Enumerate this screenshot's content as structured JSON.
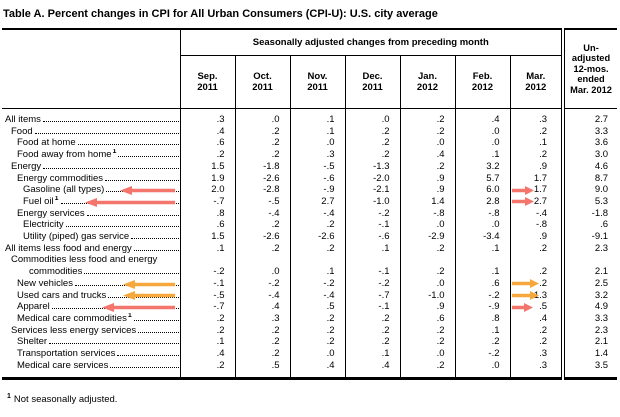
{
  "title": "Table A. Percent changes in CPI for All Urban Consumers (CPI-U): U.S. city average",
  "footnote": {
    "marker": "1",
    "text": "Not seasonally adjusted."
  },
  "colors": {
    "arrow_red": "#F4756B",
    "arrow_orange": "#F6A83C"
  },
  "table": {
    "group_header": "Seasonally adjusted changes from preceding month",
    "unadjusted_header_lines": [
      "Un-",
      "adjusted",
      "12-mos.",
      "ended",
      "Mar. 2012"
    ],
    "columns": [
      {
        "month": "Sep.",
        "year": "2011"
      },
      {
        "month": "Oct.",
        "year": "2011"
      },
      {
        "month": "Nov.",
        "year": "2011"
      },
      {
        "month": "Dec.",
        "year": "2011"
      },
      {
        "month": "Jan.",
        "year": "2012"
      },
      {
        "month": "Feb.",
        "year": "2012"
      },
      {
        "month": "Mar.",
        "year": "2012"
      }
    ],
    "rows": [
      {
        "label": "All items",
        "indent": 0,
        "values": [
          ".3",
          ".0",
          ".1",
          ".0",
          ".2",
          ".4",
          ".3"
        ],
        "unadjusted": "2.7"
      },
      {
        "label": "Food",
        "indent": 1,
        "values": [
          ".4",
          ".2",
          ".1",
          ".2",
          ".2",
          ".0",
          ".2"
        ],
        "unadjusted": "3.3"
      },
      {
        "label": "Food at home",
        "indent": 2,
        "values": [
          ".6",
          ".2",
          ".0",
          ".2",
          ".0",
          ".0",
          ".1"
        ],
        "unadjusted": "3.6"
      },
      {
        "label": "Food away from home",
        "sup": true,
        "indent": 2,
        "values": [
          ".2",
          ".2",
          ".3",
          ".2",
          ".4",
          ".1",
          ".2"
        ],
        "unadjusted": "3.0"
      },
      {
        "label": "Energy",
        "indent": 1,
        "values": [
          "1.5",
          "-1.8",
          "-.5",
          "-1.3",
          ".2",
          "3.2",
          ".9"
        ],
        "unadjusted": "4.6"
      },
      {
        "label": "Energy commodities",
        "indent": 2,
        "values": [
          "1.9",
          "-2.6",
          "-.6",
          "-2.0",
          ".9",
          "5.7",
          "1.7"
        ],
        "unadjusted": "8.7"
      },
      {
        "label": "Gasoline (all types)",
        "indent": 3,
        "values": [
          "2.0",
          "-2.8",
          "-.9",
          "-2.1",
          ".9",
          "6.0",
          "1.7"
        ],
        "unadjusted": "9.0",
        "label_arrow": "red",
        "label_arrow_w": 55,
        "mar_arrow": "red",
        "mar_arrow_w": 22
      },
      {
        "label": "Fuel oil",
        "sup": true,
        "indent": 3,
        "values": [
          "-.7",
          "-.5",
          "2.7",
          "-1.0",
          "1.4",
          "2.8",
          "2.7"
        ],
        "unadjusted": "5.3",
        "label_arrow": "red",
        "label_arrow_w": 90,
        "mar_arrow": "red",
        "mar_arrow_w": 22
      },
      {
        "label": "Energy services",
        "indent": 2,
        "values": [
          ".8",
          "-.4",
          "-.4",
          "-.2",
          "-.8",
          "-.8",
          "-.4"
        ],
        "unadjusted": "-1.8"
      },
      {
        "label": "Electricity",
        "indent": 3,
        "values": [
          ".6",
          ".2",
          ".2",
          "-.1",
          ".0",
          ".0",
          "-.8"
        ],
        "unadjusted": ".6"
      },
      {
        "label": "Utility (piped) gas service",
        "indent": 3,
        "values": [
          "1.5",
          "-2.6",
          "-2.6",
          "-.6",
          "-2.9",
          "-3.4",
          ".9"
        ],
        "unadjusted": "-9.1"
      },
      {
        "label": "All items less food and energy",
        "indent": 0,
        "values": [
          ".1",
          ".2",
          ".2",
          ".1",
          ".2",
          ".1",
          ".2"
        ],
        "unadjusted": "2.3"
      },
      {
        "label": "Commodities less food and energy",
        "label2": "commodities",
        "indent": 1,
        "indent2": 27,
        "values": [
          "-.2",
          ".0",
          ".1",
          "-.1",
          ".2",
          ".1",
          ".2"
        ],
        "unadjusted": "2.1"
      },
      {
        "label": "New vehicles",
        "indent": 2,
        "values": [
          "-.1",
          "-.2",
          "-.2",
          "-.2",
          ".0",
          ".6",
          ".2"
        ],
        "unadjusted": "2.5",
        "label_arrow": "orange",
        "label_arrow_w": 52,
        "mar_arrow": "orange",
        "mar_arrow_w": 27
      },
      {
        "label": "Used cars and trucks",
        "indent": 2,
        "values": [
          "-.5",
          "-.4",
          "-.4",
          "-.7",
          "-1.0",
          "-.2",
          "1.3"
        ],
        "unadjusted": "3.2",
        "label_arrow": "orange",
        "label_arrow_w": 52,
        "mar_arrow": "orange",
        "mar_arrow_w": 27
      },
      {
        "label": "Apparel",
        "indent": 2,
        "values": [
          "-.7",
          ".4",
          ".5",
          "-.1",
          ".9",
          "-.9",
          ".5"
        ],
        "unadjusted": "4.9",
        "label_arrow": "red",
        "label_arrow_w": 73,
        "mar_arrow": "red",
        "mar_arrow_w": 21
      },
      {
        "label": "Medical care commodities",
        "sup": true,
        "indent": 2,
        "values": [
          ".2",
          ".3",
          ".2",
          ".2",
          ".6",
          ".8",
          ".4"
        ],
        "unadjusted": "3.3"
      },
      {
        "label": "Services less energy services",
        "indent": 1,
        "values": [
          ".2",
          ".2",
          ".2",
          ".2",
          ".2",
          ".1",
          ".2"
        ],
        "unadjusted": "2.3"
      },
      {
        "label": "Shelter",
        "indent": 2,
        "values": [
          ".1",
          ".2",
          ".2",
          ".2",
          ".2",
          ".2",
          ".2"
        ],
        "unadjusted": "2.1"
      },
      {
        "label": "Transportation services",
        "indent": 2,
        "values": [
          ".4",
          ".2",
          ".0",
          ".1",
          ".0",
          "-.2",
          ".3"
        ],
        "unadjusted": "1.4"
      },
      {
        "label": "Medical care services",
        "indent": 2,
        "values": [
          ".2",
          ".5",
          ".4",
          ".4",
          ".2",
          ".0",
          ".3"
        ],
        "unadjusted": "3.5"
      }
    ]
  }
}
